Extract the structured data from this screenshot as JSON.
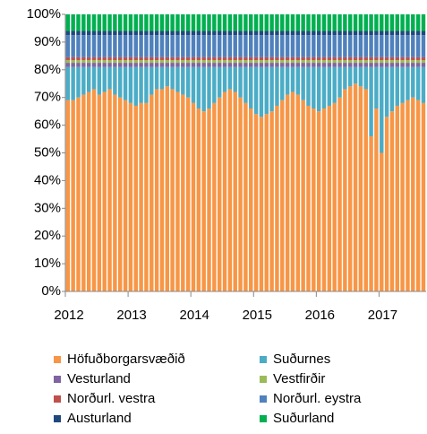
{
  "chart_data": {
    "type": "stacked_bar",
    "categories": [
      "2012",
      null,
      null,
      null,
      null,
      null,
      null,
      null,
      null,
      null,
      null,
      null,
      "2013",
      null,
      null,
      null,
      null,
      null,
      null,
      null,
      null,
      null,
      null,
      null,
      "2014",
      null,
      null,
      null,
      null,
      null,
      null,
      null,
      null,
      null,
      null,
      null,
      "2015",
      null,
      null,
      null,
      null,
      null,
      null,
      null,
      null,
      null,
      null,
      null,
      "2016",
      null,
      null,
      null,
      null,
      null,
      null,
      null,
      null,
      null,
      null,
      null,
      "2017",
      null,
      null,
      null,
      null,
      null,
      null,
      null,
      null
    ],
    "series": [
      {
        "name": "Höfuðborgarsvæðið",
        "color": "#f79646",
        "values": [
          69,
          69,
          70,
          71,
          72,
          73,
          71,
          72,
          73,
          71,
          70,
          69,
          68,
          67,
          68,
          68,
          71,
          73,
          73,
          74,
          73,
          72,
          71,
          70,
          68,
          66,
          65,
          66,
          68,
          70,
          72,
          73,
          72,
          70,
          68,
          66,
          64,
          63,
          64,
          65,
          67,
          69,
          71,
          72,
          71,
          69,
          67,
          66,
          65,
          66,
          67,
          68,
          70,
          73,
          74,
          75,
          74,
          73,
          56,
          66,
          50,
          63,
          65,
          67,
          68,
          69,
          70,
          69,
          68
        ]
      },
      {
        "name": "Suðurnes",
        "color": "#4bacc6",
        "values": [
          12,
          12,
          11,
          10,
          9,
          8,
          10,
          9,
          8,
          10,
          11,
          12,
          13,
          14,
          13,
          13,
          10,
          8,
          8,
          7,
          8,
          9,
          10,
          11,
          13,
          15,
          16,
          15,
          13,
          11,
          9,
          8,
          9,
          11,
          13,
          15,
          17,
          18,
          17,
          16,
          14,
          12,
          10,
          9,
          10,
          12,
          14,
          15,
          16,
          15,
          14,
          13,
          11,
          8,
          7,
          6,
          7,
          8,
          25,
          15,
          31,
          18,
          16,
          14,
          13,
          12,
          11,
          12,
          13
        ]
      },
      {
        "name": "Vesturland",
        "color": "#8064a2",
        "values": [
          1.5,
          1.5,
          1.5,
          1.5,
          1.5,
          1.5,
          1.5,
          1.5,
          1.5,
          1.5,
          1.5,
          1.5,
          1.5,
          1.5,
          1.5,
          1.5,
          1.5,
          1.5,
          1.5,
          1.5,
          1.5,
          1.5,
          1.5,
          1.5,
          1.5,
          1.5,
          1.5,
          1.5,
          1.5,
          1.5,
          1.5,
          1.5,
          1.5,
          1.5,
          1.5,
          1.5,
          1.5,
          1.5,
          1.5,
          1.5,
          1.5,
          1.5,
          1.5,
          1.5,
          1.5,
          1.5,
          1.5,
          1.5,
          1.5,
          1.5,
          1.5,
          1.5,
          1.5,
          1.5,
          1.5,
          1.5,
          1.5,
          1.5,
          1.5,
          1.5,
          1.5,
          1.5,
          1.5,
          1.5,
          1.5,
          1.5,
          1.5,
          1.5,
          1.5
        ]
      },
      {
        "name": "Vestfirðir",
        "color": "#9bbb59",
        "values": [
          1,
          1,
          1,
          1,
          1,
          1,
          1,
          1,
          1,
          1,
          1,
          1,
          1,
          1,
          1,
          1,
          1,
          1,
          1,
          1,
          1,
          1,
          1,
          1,
          1,
          1,
          1,
          1,
          1,
          1,
          1,
          1,
          1,
          1,
          1,
          1,
          1,
          1,
          1,
          1,
          1,
          1,
          1,
          1,
          1,
          1,
          1,
          1,
          1,
          1,
          1,
          1,
          1,
          1,
          1,
          1,
          1,
          1,
          1,
          1,
          1,
          1,
          1,
          1,
          1,
          1,
          1,
          1,
          1
        ]
      },
      {
        "name": "Norðurl. vestra",
        "color": "#c0504d",
        "values": [
          1,
          1,
          1,
          1,
          1,
          1,
          1,
          1,
          1,
          1,
          1,
          1,
          1,
          1,
          1,
          1,
          1,
          1,
          1,
          1,
          1,
          1,
          1,
          1,
          1,
          1,
          1,
          1,
          1,
          1,
          1,
          1,
          1,
          1,
          1,
          1,
          1,
          1,
          1,
          1,
          1,
          1,
          1,
          1,
          1,
          1,
          1,
          1,
          1,
          1,
          1,
          1,
          1,
          1,
          1,
          1,
          1,
          1,
          1,
          1,
          1,
          1,
          1,
          1,
          1,
          1,
          1,
          1,
          1
        ]
      },
      {
        "name": "Norðurl. eystra",
        "color": "#4f81bd",
        "values": [
          8,
          8,
          8,
          8,
          8,
          8,
          8,
          8,
          8,
          8,
          8,
          8,
          8,
          8,
          8,
          8,
          8,
          8,
          8,
          8,
          8,
          8,
          8,
          8,
          8,
          8,
          8,
          8,
          8,
          8,
          8,
          8,
          8,
          8,
          8,
          8,
          8,
          8,
          8,
          8,
          8,
          8,
          8,
          8,
          8,
          8,
          8,
          8,
          8,
          8,
          8,
          8,
          8,
          8,
          8,
          8,
          8,
          8,
          8,
          8,
          8,
          8,
          8,
          8,
          8,
          8,
          8,
          8,
          8
        ]
      },
      {
        "name": "Austurland",
        "color": "#1f497d",
        "values": [
          1.5,
          1.5,
          1.5,
          1.5,
          1.5,
          1.5,
          1.5,
          1.5,
          1.5,
          1.5,
          1.5,
          1.5,
          1.5,
          1.5,
          1.5,
          1.5,
          1.5,
          1.5,
          1.5,
          1.5,
          1.5,
          1.5,
          1.5,
          1.5,
          1.5,
          1.5,
          1.5,
          1.5,
          1.5,
          1.5,
          1.5,
          1.5,
          1.5,
          1.5,
          1.5,
          1.5,
          1.5,
          1.5,
          1.5,
          1.5,
          1.5,
          1.5,
          1.5,
          1.5,
          1.5,
          1.5,
          1.5,
          1.5,
          1.5,
          1.5,
          1.5,
          1.5,
          1.5,
          1.5,
          1.5,
          1.5,
          1.5,
          1.5,
          1.5,
          1.5,
          1.5,
          1.5,
          1.5,
          1.5,
          1.5,
          1.5,
          1.5,
          1.5,
          1.5
        ]
      },
      {
        "name": "Suðurland",
        "color": "#00b050",
        "values": [
          6,
          6,
          6,
          6,
          6,
          6,
          6,
          6,
          6,
          6,
          6,
          6,
          6,
          6,
          6,
          6,
          6,
          6,
          6,
          6,
          6,
          6,
          6,
          6,
          6,
          6,
          6,
          6,
          6,
          6,
          6,
          6,
          6,
          6,
          6,
          6,
          6,
          6,
          6,
          6,
          6,
          6,
          6,
          6,
          6,
          6,
          6,
          6,
          6,
          6,
          6,
          6,
          6,
          6,
          6,
          6,
          6,
          6,
          6,
          6,
          6,
          6,
          6,
          6,
          6,
          6,
          6,
          6,
          6
        ]
      }
    ],
    "ylim": [
      0,
      100
    ],
    "yticks": [
      {
        "value": 0,
        "label": "0%"
      },
      {
        "value": 10,
        "label": "10%"
      },
      {
        "value": 20,
        "label": "20%"
      },
      {
        "value": 30,
        "label": "30%"
      },
      {
        "value": 40,
        "label": "40%"
      },
      {
        "value": 50,
        "label": "50%"
      },
      {
        "value": 60,
        "label": "60%"
      },
      {
        "value": 70,
        "label": "70%"
      },
      {
        "value": 80,
        "label": "80%"
      },
      {
        "value": 90,
        "label": "90%"
      },
      {
        "value": 100,
        "label": "100%"
      }
    ],
    "legend": "bottom"
  }
}
